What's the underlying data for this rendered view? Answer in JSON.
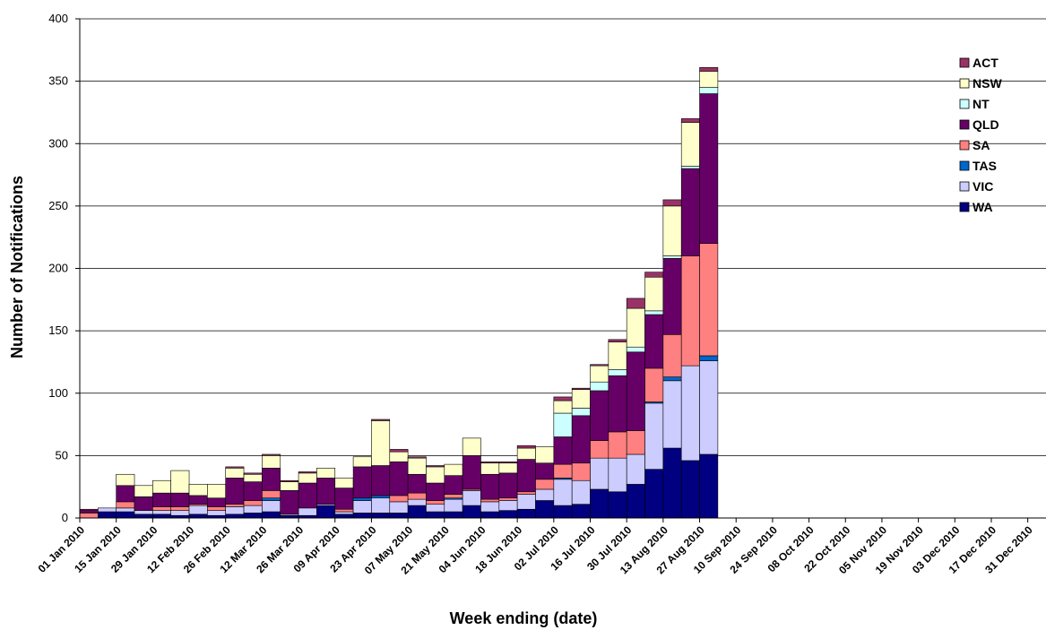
{
  "chart_data": {
    "type": "bar",
    "stacked": true,
    "title": "",
    "xlabel": "Week ending (date)",
    "ylabel": "Number of Notifications",
    "ylim": [
      0,
      400
    ],
    "yticks": [
      0,
      50,
      100,
      150,
      200,
      250,
      300,
      350,
      400
    ],
    "grid": true,
    "legend_position": "top-right",
    "x_tick_labels": [
      "01 Jan 2010",
      "15 Jan 2010",
      "29 Jan 2010",
      "12 Feb 2010",
      "26 Feb 2010",
      "12 Mar 2010",
      "26 Mar 2010",
      "09 Apr 2010",
      "23 Apr 2010",
      "07 May 2010",
      "21 May 2010",
      "04 Jun 2010",
      "18 Jun 2010",
      "02 Jul 2010",
      "16 Jul 2010",
      "30 Jul 2010",
      "13 Aug 2010",
      "27 Aug 2010",
      "10 Sep 2010",
      "24 Sep 2010",
      "08 Oct 2010",
      "22 Oct 2010",
      "05 Nov 2010",
      "19 Nov 2010",
      "03 Dec 2010",
      "17 Dec 2010",
      "31 Dec 2010"
    ],
    "weeks": [
      "01 Jan 2010",
      "08 Jan 2010",
      "15 Jan 2010",
      "22 Jan 2010",
      "29 Jan 2010",
      "05 Feb 2010",
      "12 Feb 2010",
      "19 Feb 2010",
      "26 Feb 2010",
      "05 Mar 2010",
      "12 Mar 2010",
      "19 Mar 2010",
      "26 Mar 2010",
      "02 Apr 2010",
      "09 Apr 2010",
      "16 Apr 2010",
      "23 Apr 2010",
      "30 Apr 2010",
      "07 May 2010",
      "14 May 2010",
      "21 May 2010",
      "28 May 2010",
      "04 Jun 2010",
      "11 Jun 2010",
      "18 Jun 2010",
      "25 Jun 2010",
      "02 Jul 2010",
      "09 Jul 2010",
      "16 Jul 2010",
      "23 Jul 2010",
      "30 Jul 2010",
      "06 Aug 2010",
      "13 Aug 2010",
      "20 Aug 2010",
      "27 Aug 2010",
      "03 Sep 2010",
      "10 Sep 2010",
      "17 Sep 2010",
      "24 Sep 2010",
      "01 Oct 2010",
      "08 Oct 2010",
      "15 Oct 2010",
      "22 Oct 2010",
      "29 Oct 2010",
      "05 Nov 2010",
      "12 Nov 2010",
      "19 Nov 2010",
      "26 Nov 2010",
      "03 Dec 2010",
      "10 Dec 2010",
      "17 Dec 2010",
      "24 Dec 2010",
      "31 Dec 2010"
    ],
    "series": [
      {
        "name": "WA",
        "color": "#000080",
        "values": [
          0,
          5,
          5,
          3,
          3,
          2,
          3,
          2,
          3,
          4,
          5,
          2,
          2,
          10,
          3,
          4,
          4,
          4,
          10,
          5,
          5,
          10,
          5,
          6,
          7,
          14,
          10,
          11,
          23,
          21,
          27,
          39,
          56,
          46,
          51
        ]
      },
      {
        "name": "VIC",
        "color": "#ccccff",
        "values": [
          0,
          3,
          3,
          3,
          3,
          4,
          7,
          4,
          6,
          6,
          9,
          1,
          6,
          1,
          2,
          10,
          12,
          9,
          5,
          6,
          10,
          12,
          8,
          8,
          12,
          9,
          21,
          19,
          25,
          27,
          24,
          53,
          54,
          76,
          75
        ]
      },
      {
        "name": "TAS",
        "color": "#0066cc",
        "values": [
          0,
          0,
          0,
          0,
          0,
          0,
          0,
          0,
          0,
          0,
          2,
          0,
          0,
          0,
          0,
          2,
          2,
          0,
          0,
          0,
          1,
          0,
          0,
          0,
          0,
          0,
          1,
          0,
          0,
          0,
          0,
          1,
          3,
          0,
          4
        ]
      },
      {
        "name": "SA",
        "color": "#ff8080",
        "values": [
          4,
          0,
          5,
          0,
          3,
          3,
          1,
          3,
          2,
          4,
          6,
          0,
          0,
          0,
          2,
          0,
          0,
          5,
          5,
          3,
          3,
          1,
          2,
          2,
          2,
          8,
          11,
          14,
          14,
          21,
          19,
          27,
          34,
          88,
          90
        ]
      },
      {
        "name": "QLD",
        "color": "#660066",
        "values": [
          2,
          0,
          13,
          11,
          11,
          11,
          7,
          7,
          21,
          15,
          18,
          19,
          20,
          21,
          17,
          25,
          24,
          27,
          15,
          14,
          15,
          27,
          20,
          20,
          26,
          13,
          22,
          38,
          40,
          45,
          63,
          43,
          61,
          70,
          120
        ]
      },
      {
        "name": "NT",
        "color": "#ccffff",
        "values": [
          0,
          0,
          0,
          0,
          0,
          0,
          0,
          0,
          0,
          0,
          0,
          0,
          0,
          0,
          0,
          0,
          0,
          0,
          0,
          0,
          0,
          0,
          0,
          0,
          0,
          0,
          19,
          6,
          7,
          5,
          4,
          3,
          2,
          2,
          5
        ]
      },
      {
        "name": "NSW",
        "color": "#ffffcc",
        "values": [
          0,
          0,
          9,
          9,
          10,
          18,
          9,
          11,
          8,
          6,
          10,
          7,
          8,
          8,
          8,
          8,
          36,
          8,
          13,
          13,
          9,
          14,
          9,
          8,
          9,
          13,
          10,
          15,
          13,
          22,
          31,
          27,
          40,
          35,
          13
        ]
      },
      {
        "name": "ACT",
        "color": "#993366",
        "values": [
          1,
          0,
          0,
          0,
          0,
          0,
          0,
          0,
          1,
          1,
          1,
          1,
          1,
          0,
          0,
          0,
          1,
          2,
          1,
          1,
          0,
          0,
          1,
          1,
          2,
          0,
          3,
          1,
          1,
          2,
          8,
          4,
          5,
          3,
          3
        ]
      }
    ]
  }
}
